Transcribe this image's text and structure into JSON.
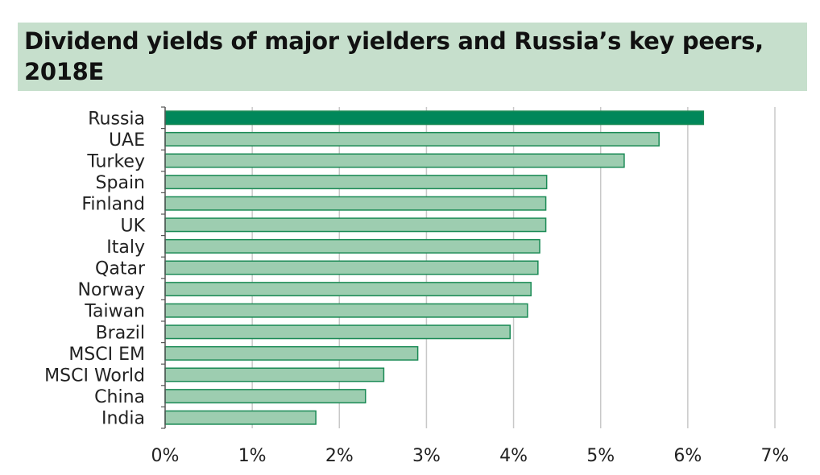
{
  "chart_data": {
    "type": "bar",
    "orientation": "horizontal",
    "title": "Dividend yields of major yielders and Russia’s key peers, 2018E",
    "xlabel": "",
    "ylabel": "",
    "xlim": [
      0,
      7
    ],
    "x_ticks": [
      "0%",
      "1%",
      "2%",
      "3%",
      "4%",
      "5%",
      "6%",
      "7%"
    ],
    "grid": "vertical",
    "categories": [
      "Russia",
      "UAE",
      "Turkey",
      "Spain",
      "Finland",
      "UK",
      "Italy",
      "Qatar",
      "Norway",
      "Taiwan",
      "Brazil",
      "MSCI EM",
      "MSCI World",
      "China",
      "India"
    ],
    "values": [
      6.18,
      5.67,
      5.27,
      4.38,
      4.37,
      4.37,
      4.3,
      4.28,
      4.2,
      4.16,
      3.96,
      2.9,
      2.51,
      2.3,
      1.73
    ],
    "highlight_category": "Russia",
    "colors": {
      "highlight_fill": "#00875a",
      "bar_fill": "#9dcdb0",
      "bar_stroke": "#1a8a55",
      "grid": "#c8c8c8",
      "axis": "#555555",
      "title_bg": "#c6dfcc"
    }
  }
}
